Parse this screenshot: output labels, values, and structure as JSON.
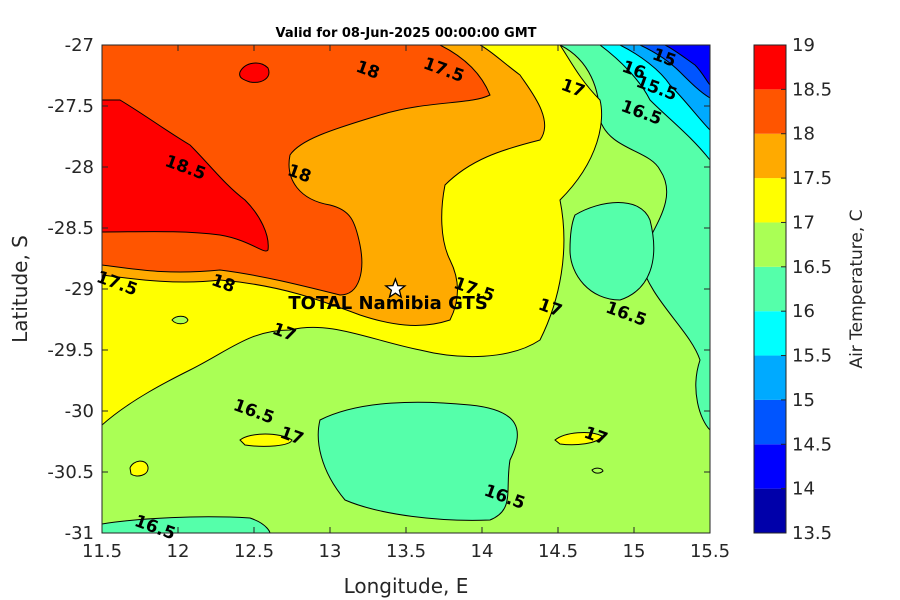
{
  "chart_data": {
    "type": "heatmap",
    "title": "Valid for 08-Jun-2025 00:00:00 GMT",
    "xlabel": "Longitude, E",
    "ylabel": "Latitude, S",
    "xlim": [
      11.5,
      15.5
    ],
    "ylim": [
      -31,
      -27
    ],
    "xticks": [
      "11.5",
      "12",
      "12.5",
      "13",
      "13.5",
      "14",
      "14.5",
      "15",
      "15.5"
    ],
    "yticks": [
      "-27",
      "-27.5",
      "-28",
      "-28.5",
      "-29",
      "-29.5",
      "-30",
      "-30.5",
      "-31"
    ],
    "colorbar": {
      "label": "Air Temperature, C",
      "levels": [
        13.5,
        14,
        14.5,
        15,
        15.5,
        16,
        16.5,
        17,
        17.5,
        18,
        18.5,
        19
      ],
      "ticks": [
        "13.5",
        "14",
        "14.5",
        "15",
        "15.5",
        "16",
        "16.5",
        "17",
        "17.5",
        "18",
        "18.5",
        "19"
      ],
      "colors": [
        "#0000aa",
        "#0000ff",
        "#0055ff",
        "#00aaff",
        "#00ffff",
        "#55ffaa",
        "#aaff55",
        "#ffff00",
        "#ffaa00",
        "#ff5500",
        "#ff0000"
      ]
    },
    "contour_labels": [
      {
        "text": "18",
        "lon": 13.25,
        "lat": -27.2
      },
      {
        "text": "17.5",
        "lon": 13.75,
        "lat": -27.2
      },
      {
        "text": "17",
        "lon": 14.6,
        "lat": -27.35
      },
      {
        "text": "16.5",
        "lon": 15.05,
        "lat": -27.55
      },
      {
        "text": "15.5",
        "lon": 15.15,
        "lat": -27.35
      },
      {
        "text": "15",
        "lon": 15.2,
        "lat": -27.1
      },
      {
        "text": "16",
        "lon": 15.0,
        "lat": -27.2
      },
      {
        "text": "18.5",
        "lon": 12.05,
        "lat": -28.0
      },
      {
        "text": "18",
        "lon": 12.8,
        "lat": -28.05
      },
      {
        "text": "18",
        "lon": 12.3,
        "lat": -28.95
      },
      {
        "text": "17.5",
        "lon": 11.6,
        "lat": -28.95
      },
      {
        "text": "17.5",
        "lon": 13.95,
        "lat": -29.0
      },
      {
        "text": "17",
        "lon": 14.45,
        "lat": -29.15
      },
      {
        "text": "16.5",
        "lon": 14.95,
        "lat": -29.2
      },
      {
        "text": "17",
        "lon": 12.7,
        "lat": -29.35
      },
      {
        "text": "16.5",
        "lon": 12.5,
        "lat": -30.0
      },
      {
        "text": "17",
        "lon": 12.75,
        "lat": -30.2
      },
      {
        "text": "17",
        "lon": 14.75,
        "lat": -30.2
      },
      {
        "text": "16.5",
        "lon": 14.15,
        "lat": -30.7
      },
      {
        "text": "16.5",
        "lon": 11.85,
        "lat": -30.95
      }
    ],
    "site": {
      "name": "TOTAL Namibia GTS",
      "lon": 13.43,
      "lat": -29.0
    }
  }
}
